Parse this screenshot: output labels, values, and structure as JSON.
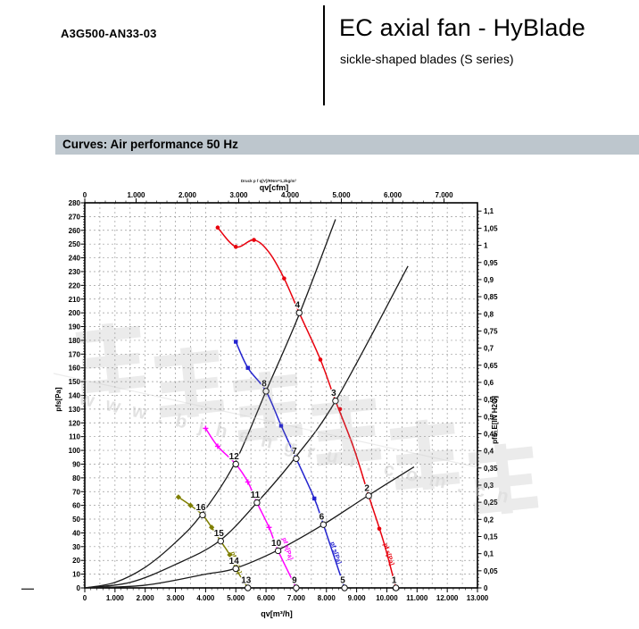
{
  "header": {
    "model": "A3G500-AN33-03",
    "title": "EC axial fan - HyBlade",
    "subtitle": "sickle-shaped blades (S series)"
  },
  "section": {
    "title": "Curves: Air performance 50 Hz"
  },
  "footnote_dash": "—",
  "watermark": {
    "cjk_text": "恒瑞宏晟机电",
    "domain_text": "w w w . b j h e n g r u i . c o m . c n",
    "color": "#9a9a9a"
  },
  "chart_data": {
    "type": "line",
    "title_note": "Druck p f q[V]/RNm=1,2kg/m³",
    "grid": {
      "x_every": 500,
      "y_every": 10,
      "color": "#9b9b9b",
      "on": true
    },
    "axes": {
      "bottom": {
        "label": "qv[m³/h]",
        "min": 0,
        "max": 13000,
        "step": 1000,
        "minor": 200,
        "format": "thousands"
      },
      "top": {
        "label": "qv[cfm]",
        "min": 0,
        "max": 7000,
        "step": 1000,
        "minor": 200,
        "format": "thousands",
        "cfm_to_m3h": 1.699
      },
      "left": {
        "label": "pfs[Pa]",
        "min": 0,
        "max": 280,
        "step": 10,
        "minor": 2,
        "format": "int"
      },
      "right": {
        "label": "pfs_E[IN H2O]",
        "min": 0,
        "max": 1.1,
        "step": 0.05,
        "minor": 0.01,
        "format": "comma",
        "inh2o_to_pa": 249.089
      }
    },
    "series": [
      {
        "id": "fan-curve-1",
        "color": "#e8000d",
        "marker": "dot",
        "curve_label": "pf s[Pa]",
        "points": [
          [
            4400,
            262
          ],
          [
            5000,
            248
          ],
          [
            5600,
            253
          ],
          [
            6100,
            244
          ],
          [
            6600,
            225
          ],
          [
            7100,
            200
          ],
          [
            7800,
            166
          ],
          [
            8300,
            136
          ],
          [
            8900,
            102
          ],
          [
            9400,
            67
          ],
          [
            9900,
            33
          ],
          [
            10300,
            0
          ]
        ],
        "marker_points": [
          [
            4400,
            262
          ],
          [
            5000,
            248
          ],
          [
            5600,
            253
          ],
          [
            6600,
            225
          ],
          [
            7800,
            166
          ],
          [
            8450,
            130
          ],
          [
            9750,
            43
          ]
        ],
        "operating_points": [
          {
            "n": 4,
            "qv": 7100,
            "p": 200
          },
          {
            "n": 3,
            "qv": 8300,
            "p": 136
          },
          {
            "n": 2,
            "qv": 9400,
            "p": 67
          },
          {
            "n": 1,
            "qv": 10300,
            "p": 0
          }
        ],
        "label_pos": [
          10000,
          24
        ]
      },
      {
        "id": "fan-curve-5",
        "color": "#2323cf",
        "marker": "square",
        "curve_label": "pf s[Pa]",
        "points": [
          [
            5000,
            179
          ],
          [
            5400,
            160
          ],
          [
            6000,
            143
          ],
          [
            6500,
            118
          ],
          [
            7000,
            94
          ],
          [
            7600,
            65
          ],
          [
            7900,
            46
          ],
          [
            8600,
            0
          ]
        ],
        "marker_points": [
          [
            5000,
            179
          ],
          [
            5400,
            160
          ],
          [
            6500,
            118
          ],
          [
            7600,
            65
          ]
        ],
        "operating_points": [
          {
            "n": 8,
            "qv": 6000,
            "p": 143
          },
          {
            "n": 7,
            "qv": 7000,
            "p": 94
          },
          {
            "n": 6,
            "qv": 7900,
            "p": 46
          },
          {
            "n": 5,
            "qv": 8600,
            "p": 0
          }
        ],
        "label_pos": [
          8250,
          25
        ]
      },
      {
        "id": "fan-curve-9",
        "color": "#ff00ff",
        "marker": "plus",
        "curve_label": "pf s[Pa]",
        "points": [
          [
            4000,
            116
          ],
          [
            4400,
            103
          ],
          [
            5000,
            90
          ],
          [
            5400,
            77
          ],
          [
            5700,
            62
          ],
          [
            6100,
            44
          ],
          [
            6400,
            27
          ],
          [
            7000,
            0
          ]
        ],
        "marker_points": [
          [
            4000,
            116
          ],
          [
            4400,
            103
          ],
          [
            5400,
            77
          ],
          [
            6100,
            44
          ]
        ],
        "operating_points": [
          {
            "n": 12,
            "qv": 5000,
            "p": 90
          },
          {
            "n": 11,
            "qv": 5700,
            "p": 62
          },
          {
            "n": 10,
            "qv": 6400,
            "p": 27
          },
          {
            "n": 9,
            "qv": 7000,
            "p": 0
          }
        ],
        "label_pos": [
          6650,
          28
        ]
      },
      {
        "id": "fan-curve-13",
        "color": "#7f7f00",
        "marker": "diamond",
        "curve_label": "pf s[Pa]",
        "points": [
          [
            3100,
            66
          ],
          [
            3500,
            60
          ],
          [
            3900,
            53
          ],
          [
            4200,
            44
          ],
          [
            4500,
            34
          ],
          [
            4800,
            24
          ],
          [
            5000,
            14
          ],
          [
            5400,
            0
          ]
        ],
        "marker_points": [
          [
            3100,
            66
          ],
          [
            3500,
            60
          ],
          [
            4200,
            44
          ],
          [
            4800,
            24
          ]
        ],
        "operating_points": [
          {
            "n": 16,
            "qv": 3900,
            "p": 53
          },
          {
            "n": 15,
            "qv": 4500,
            "p": 34
          },
          {
            "n": 14,
            "qv": 5000,
            "p": 14
          },
          {
            "n": 13,
            "qv": 5400,
            "p": 0
          }
        ],
        "label_pos": [
          4950,
          18
        ]
      }
    ],
    "system_curves": [
      {
        "id": "system-curve-a",
        "points": [
          [
            0,
            0
          ],
          [
            1000,
            4
          ],
          [
            2000,
            15
          ],
          [
            3000,
            33
          ],
          [
            3850,
            53
          ],
          [
            4950,
            90
          ],
          [
            6000,
            143
          ],
          [
            7120,
            200
          ],
          [
            8300,
            268
          ]
        ]
      },
      {
        "id": "system-curve-b",
        "points": [
          [
            0,
            0
          ],
          [
            1500,
            4
          ],
          [
            3000,
            17
          ],
          [
            4450,
            34
          ],
          [
            5700,
            62
          ],
          [
            6940,
            94
          ],
          [
            8330,
            137
          ],
          [
            10700,
            234
          ]
        ]
      },
      {
        "id": "system-curve-c",
        "points": [
          [
            0,
            0
          ],
          [
            2000,
            2
          ],
          [
            4000,
            10
          ],
          [
            4950,
            14
          ],
          [
            6350,
            27
          ],
          [
            7890,
            46
          ],
          [
            9370,
            67
          ],
          [
            10900,
            88
          ]
        ]
      }
    ]
  }
}
